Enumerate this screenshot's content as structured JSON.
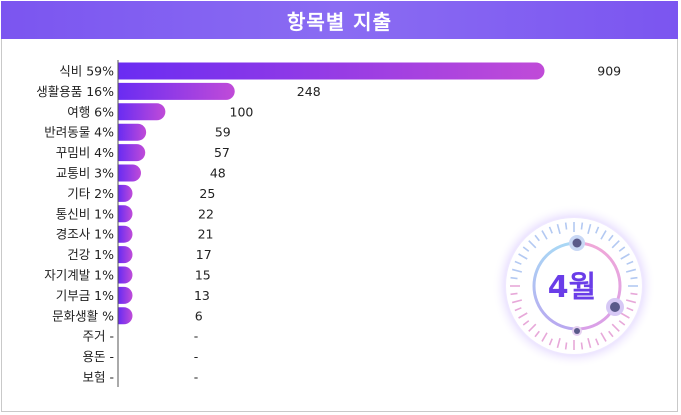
{
  "header": {
    "title": "항목별 지출"
  },
  "month_widget": {
    "label": "4월"
  },
  "colors": {
    "header": "#7b55f0",
    "bar_start": "#6a2cf2",
    "bar_end": "#c04bd8",
    "month_text": "#6a3de8"
  },
  "chart_data": {
    "type": "bar",
    "orientation": "horizontal",
    "title": "항목별 지출",
    "categories": [
      "식비 59%",
      "생활용품 16%",
      "여행 6%",
      "반려동물 4%",
      "꾸밈비 4%",
      "교통비 3%",
      "기타 2%",
      "통신비 1%",
      "경조사 1%",
      "건강 1%",
      "자기계발 1%",
      "기부금 1%",
      "문화생활 %",
      "주거 -",
      "용돈 -",
      "보험 -"
    ],
    "values": [
      909,
      248,
      100,
      59,
      57,
      48,
      25,
      22,
      21,
      17,
      15,
      13,
      6,
      null,
      null,
      null
    ],
    "value_labels": [
      "909",
      "248",
      "100",
      "59",
      "57",
      "48",
      "25",
      "22",
      "21",
      "17",
      "15",
      "13",
      "6",
      "-",
      "-",
      "-"
    ],
    "xlim": [
      0,
      909
    ],
    "grid": false,
    "legend": "none"
  }
}
